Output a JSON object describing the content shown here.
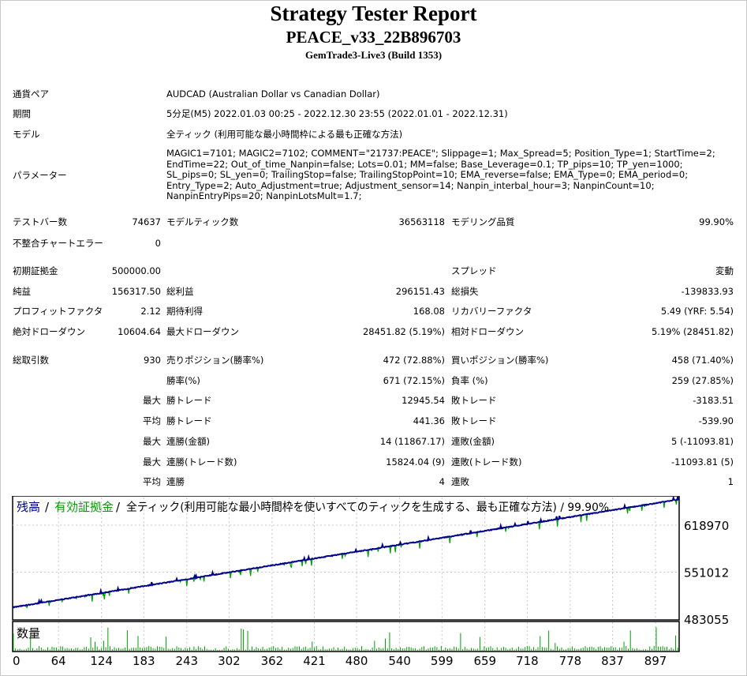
{
  "header": {
    "title": "Strategy Tester Report",
    "ea_name": "PEACE_v33_22B896703",
    "server": "GemTrade3-Live3 (Build 1353)"
  },
  "info": [
    {
      "label": "通貨ペア",
      "value": "AUDCAD (Australian Dollar vs Canadian Dollar)"
    },
    {
      "label": "期間",
      "value": "5分足(M5) 2022.01.03 00:25 - 2022.12.30 23:55 (2022.01.01 - 2022.12.31)"
    },
    {
      "label": "モデル",
      "value": "全ティック (利用可能な最小時間枠による最も正確な方法)"
    },
    {
      "label": "パラメーター",
      "value": "MAGIC1=7101; MAGIC2=7102; COMMENT=\"21737:PEACE\"; Slippage=1; Max_Spread=5; Position_Type=1; StartTime=2; EndTime=22; Out_of_time_Nanpin=false; Lots=0.01; MM=false; Base_Leverage=0.1; TP_pips=10; TP_yen=1000; SL_pips=0; SL_yen=0; TrailingStop=false; TrailingStopPoint=10; EMA_reverse=false; EMA_Type=0; EMA_period=0; Entry_Type=2; Auto_Adjustment=true; Adjustment_sensor=14; Nanpin_interbal_hour=3; NanpinCount=10; NanpinEntryPips=20; NanpinLotsMult=1.7;"
    }
  ],
  "stats": {
    "test_bars": {
      "label": "テストバー数",
      "value": "74637"
    },
    "model_ticks": {
      "label": "モデルティック数",
      "value": "36563118"
    },
    "model_quality": {
      "label": "モデリング品質",
      "value": "99.90%"
    },
    "mismatch": {
      "label": "不整合チャートエラー",
      "value": "0"
    },
    "initial_deposit": {
      "label": "初期証拠金",
      "value": "500000.00"
    },
    "spread": {
      "label": "スプレッド",
      "value": "変動"
    },
    "net_profit": {
      "label": "純益",
      "value": "156317.50"
    },
    "gross_profit": {
      "label": "総利益",
      "value": "296151.43"
    },
    "gross_loss": {
      "label": "総損失",
      "value": "-139833.93"
    },
    "profit_factor": {
      "label": "プロフィットファクタ",
      "value": "2.12"
    },
    "expected_payoff": {
      "label": "期待利得",
      "value": "168.08"
    },
    "recovery_factor": {
      "label": "リカバリーファクタ",
      "value": "5.49 (YRF: 5.54)"
    },
    "abs_drawdown": {
      "label": "絶対ドローダウン",
      "value": "10604.64"
    },
    "max_drawdown": {
      "label": "最大ドローダウン",
      "value": "28451.82 (5.19%)"
    },
    "rel_drawdown": {
      "label": "相対ドローダウン",
      "value": "5.19% (28451.82)"
    },
    "total_trades": {
      "label": "総取引数",
      "value": "930"
    },
    "short_positions": {
      "label": "売りポジション(勝率%)",
      "value": "472 (72.88%)"
    },
    "long_positions": {
      "label": "買いポジション(勝率%)",
      "value": "458 (71.40%)"
    }
  },
  "detail_rows": [
    {
      "prefix": "",
      "l1": "勝率(%)",
      "v1": "671 (72.15%)",
      "l2": "負率 (%)",
      "v2": "259 (27.85%)"
    },
    {
      "prefix": "最大",
      "l1": "勝トレード",
      "v1": "12945.54",
      "l2": "敗トレード",
      "v2": "-3183.51"
    },
    {
      "prefix": "平均",
      "l1": "勝トレード",
      "v1": "441.36",
      "l2": "敗トレード",
      "v2": "-539.90"
    },
    {
      "prefix": "最大",
      "l1": "連勝(金額)",
      "v1": "14 (11867.17)",
      "l2": "連敗(金額)",
      "v2": "5 (-11093.81)"
    },
    {
      "prefix": "最大",
      "l1": "連勝(トレード数)",
      "v1": "15824.04 (9)",
      "l2": "連敗(トレード数)",
      "v2": "-11093.81 (5)"
    },
    {
      "prefix": "平均",
      "l1": "連勝",
      "v1": "4",
      "l2": "連敗",
      "v2": "1"
    }
  ],
  "chart_data": {
    "type": "line",
    "legend": {
      "balance": "残高",
      "sep1": " / ",
      "equity": "有効証拠金",
      "sep2": " / ",
      "desc": "全ティック(利用可能な最小時間枠を使いすべてのティックを生成する、最も正確な方法) / 99.90%"
    },
    "volume_label": "数量",
    "y_ticks": [
      618970,
      551012,
      483055
    ],
    "y_tick_labels": [
      "618970",
      "551012",
      "483055"
    ],
    "x_ticks": [
      0,
      64,
      124,
      183,
      243,
      302,
      362,
      421,
      480,
      540,
      599,
      659,
      718,
      778,
      837,
      897
    ],
    "x_tick_labels": [
      "0",
      "64",
      "124",
      "183",
      "243",
      "302",
      "362",
      "421",
      "480",
      "540",
      "599",
      "659",
      "718",
      "778",
      "837",
      "897"
    ],
    "x_max": 930,
    "ylim": [
      483055,
      659000
    ],
    "balance_start": 500000,
    "balance_end": 656317.5,
    "colors": {
      "balance": "#00008b",
      "equity": "#00a000",
      "grid": "#c8c8c8"
    }
  }
}
